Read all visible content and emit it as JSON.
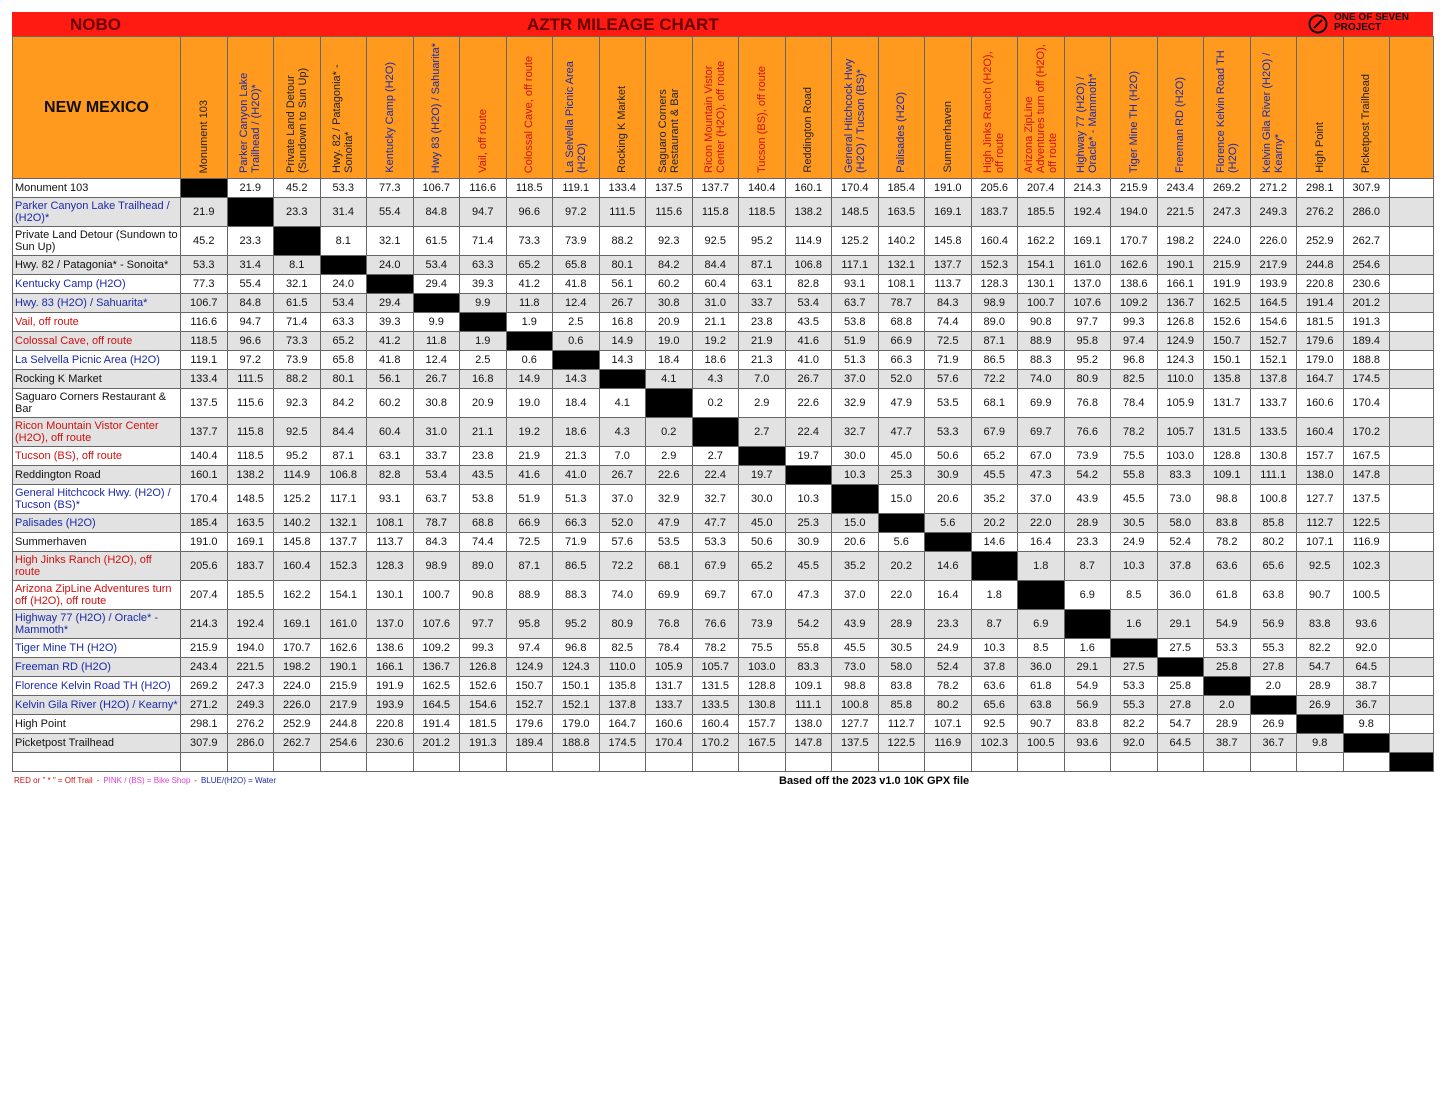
{
  "header": {
    "left": "NOBO",
    "title": "AZTR MILEAGE CHART",
    "logo": [
      "ONE OF SEVEN",
      "PROJECT"
    ]
  },
  "table": {
    "corner": "NEW MEXICO",
    "columns": [
      "Monument 103",
      "Parker Canyon Lake Trailhead / (H2O)*",
      "Private Land Detour (Sundown to Sun Up)",
      "Hwy. 82 / Patagonia* - Sonoita*",
      "Kentucky Camp (H2O)",
      "Hwy 83 (H2O) / Sahuarita*",
      "Vail, off route",
      "Colossal Cave, off route",
      "La Selvella Picnic Area (H2O)",
      "Rocking K Market",
      "Saguaro Corners Restaurant & Bar",
      "Ricon Mountain Vistor Center (H2O), off route",
      "Tucson (BS), off route",
      "Reddington Road",
      "General Hitchcock Hwy (H2O) / Tucson (BS)*",
      "Palisades (H2O)",
      "Summerhaven",
      "High Jinks Ranch (H2O), off route",
      "Arizona ZipLine Adventures turn off (H2O), off route",
      "Highway 77 (H2O) / Oracle* - Mammoth*",
      "Tiger Mine TH (H2O)",
      "Freeman RD (H2O)",
      "Florence Kelvin Road TH (H2O)",
      "Kelvin Gila River (H2O) / Kearny*",
      "High Point",
      "Picketpost Trailhead"
    ],
    "rows": [
      {
        "label": "Monument 103",
        "cells": [
          null,
          "21.9",
          "45.2",
          "53.3",
          "77.3",
          "106.7",
          "116.6",
          "118.5",
          "119.1",
          "133.4",
          "137.5",
          "137.7",
          "140.4",
          "160.1",
          "170.4",
          "185.4",
          "191.0",
          "205.6",
          "207.4",
          "214.3",
          "215.9",
          "243.4",
          "269.2",
          "271.2",
          "298.1",
          "307.9"
        ]
      },
      {
        "label": "Parker Canyon Lake Trailhead / (H2O)*",
        "cells": [
          "21.9",
          null,
          "23.3",
          "31.4",
          "55.4",
          "84.8",
          "94.7",
          "96.6",
          "97.2",
          "111.5",
          "115.6",
          "115.8",
          "118.5",
          "138.2",
          "148.5",
          "163.5",
          "169.1",
          "183.7",
          "185.5",
          "192.4",
          "194.0",
          "221.5",
          "247.3",
          "249.3",
          "276.2",
          "286.0"
        ]
      },
      {
        "label": "Private Land Detour (Sundown to Sun Up)",
        "cells": [
          "45.2",
          "23.3",
          null,
          "8.1",
          "32.1",
          "61.5",
          "71.4",
          "73.3",
          "73.9",
          "88.2",
          "92.3",
          "92.5",
          "95.2",
          "114.9",
          "125.2",
          "140.2",
          "145.8",
          "160.4",
          "162.2",
          "169.1",
          "170.7",
          "198.2",
          "224.0",
          "226.0",
          "252.9",
          "262.7"
        ]
      },
      {
        "label": "Hwy. 82 / Patagonia* - Sonoita*",
        "cells": [
          "53.3",
          "31.4",
          "8.1",
          null,
          "24.0",
          "53.4",
          "63.3",
          "65.2",
          "65.8",
          "80.1",
          "84.2",
          "84.4",
          "87.1",
          "106.8",
          "117.1",
          "132.1",
          "137.7",
          "152.3",
          "154.1",
          "161.0",
          "162.6",
          "190.1",
          "215.9",
          "217.9",
          "244.8",
          "254.6"
        ]
      },
      {
        "label": "Kentucky Camp (H2O)",
        "cells": [
          "77.3",
          "55.4",
          "32.1",
          "24.0",
          null,
          "29.4",
          "39.3",
          "41.2",
          "41.8",
          "56.1",
          "60.2",
          "60.4",
          "63.1",
          "82.8",
          "93.1",
          "108.1",
          "113.7",
          "128.3",
          "130.1",
          "137.0",
          "138.6",
          "166.1",
          "191.9",
          "193.9",
          "220.8",
          "230.6"
        ]
      },
      {
        "label": "Hwy. 83 (H2O) / Sahuarita*",
        "cells": [
          "106.7",
          "84.8",
          "61.5",
          "53.4",
          "29.4",
          null,
          "9.9",
          "11.8",
          "12.4",
          "26.7",
          "30.8",
          "31.0",
          "33.7",
          "53.4",
          "63.7",
          "78.7",
          "84.3",
          "98.9",
          "100.7",
          "107.6",
          "109.2",
          "136.7",
          "162.5",
          "164.5",
          "191.4",
          "201.2"
        ]
      },
      {
        "label": "Vail, off route",
        "cells": [
          "116.6",
          "94.7",
          "71.4",
          "63.3",
          "39.3",
          "9.9",
          null,
          "1.9",
          "2.5",
          "16.8",
          "20.9",
          "21.1",
          "23.8",
          "43.5",
          "53.8",
          "68.8",
          "74.4",
          "89.0",
          "90.8",
          "97.7",
          "99.3",
          "126.8",
          "152.6",
          "154.6",
          "181.5",
          "191.3"
        ]
      },
      {
        "label": "Colossal Cave, off route",
        "cells": [
          "118.5",
          "96.6",
          "73.3",
          "65.2",
          "41.2",
          "11.8",
          "1.9",
          null,
          "0.6",
          "14.9",
          "19.0",
          "19.2",
          "21.9",
          "41.6",
          "51.9",
          "66.9",
          "72.5",
          "87.1",
          "88.9",
          "95.8",
          "97.4",
          "124.9",
          "150.7",
          "152.7",
          "179.6",
          "189.4"
        ]
      },
      {
        "label": "La Selvella Picnic Area (H2O)",
        "cells": [
          "119.1",
          "97.2",
          "73.9",
          "65.8",
          "41.8",
          "12.4",
          "2.5",
          "0.6",
          null,
          "14.3",
          "18.4",
          "18.6",
          "21.3",
          "41.0",
          "51.3",
          "66.3",
          "71.9",
          "86.5",
          "88.3",
          "95.2",
          "96.8",
          "124.3",
          "150.1",
          "152.1",
          "179.0",
          "188.8"
        ]
      },
      {
        "label": "Rocking K Market",
        "cells": [
          "133.4",
          "111.5",
          "88.2",
          "80.1",
          "56.1",
          "26.7",
          "16.8",
          "14.9",
          "14.3",
          null,
          "4.1",
          "4.3",
          "7.0",
          "26.7",
          "37.0",
          "52.0",
          "57.6",
          "72.2",
          "74.0",
          "80.9",
          "82.5",
          "110.0",
          "135.8",
          "137.8",
          "164.7",
          "174.5"
        ]
      },
      {
        "label": "Saguaro Corners Restaurant & Bar",
        "cells": [
          "137.5",
          "115.6",
          "92.3",
          "84.2",
          "60.2",
          "30.8",
          "20.9",
          "19.0",
          "18.4",
          "4.1",
          null,
          "0.2",
          "2.9",
          "22.6",
          "32.9",
          "47.9",
          "53.5",
          "68.1",
          "69.9",
          "76.8",
          "78.4",
          "105.9",
          "131.7",
          "133.7",
          "160.6",
          "170.4"
        ]
      },
      {
        "label": "Ricon Mountain Vistor Center (H2O), off route",
        "cells": [
          "137.7",
          "115.8",
          "92.5",
          "84.4",
          "60.4",
          "31.0",
          "21.1",
          "19.2",
          "18.6",
          "4.3",
          "0.2",
          null,
          "2.7",
          "22.4",
          "32.7",
          "47.7",
          "53.3",
          "67.9",
          "69.7",
          "76.6",
          "78.2",
          "105.7",
          "131.5",
          "133.5",
          "160.4",
          "170.2"
        ]
      },
      {
        "label": "Tucson (BS), off route",
        "cells": [
          "140.4",
          "118.5",
          "95.2",
          "87.1",
          "63.1",
          "33.7",
          "23.8",
          "21.9",
          "21.3",
          "7.0",
          "2.9",
          "2.7",
          null,
          "19.7",
          "30.0",
          "45.0",
          "50.6",
          "65.2",
          "67.0",
          "73.9",
          "75.5",
          "103.0",
          "128.8",
          "130.8",
          "157.7",
          "167.5"
        ]
      },
      {
        "label": "Reddington Road",
        "cells": [
          "160.1",
          "138.2",
          "114.9",
          "106.8",
          "82.8",
          "53.4",
          "43.5",
          "41.6",
          "41.0",
          "26.7",
          "22.6",
          "22.4",
          "19.7",
          null,
          "10.3",
          "25.3",
          "30.9",
          "45.5",
          "47.3",
          "54.2",
          "55.8",
          "83.3",
          "109.1",
          "111.1",
          "138.0",
          "147.8"
        ]
      },
      {
        "label": "General Hitchcock Hwy. (H2O) / Tucson (BS)*",
        "cells": [
          "170.4",
          "148.5",
          "125.2",
          "117.1",
          "93.1",
          "63.7",
          "53.8",
          "51.9",
          "51.3",
          "37.0",
          "32.9",
          "32.7",
          "30.0",
          "10.3",
          null,
          "15.0",
          "20.6",
          "35.2",
          "37.0",
          "43.9",
          "45.5",
          "73.0",
          "98.8",
          "100.8",
          "127.7",
          "137.5"
        ]
      },
      {
        "label": "Palisades (H2O)",
        "cells": [
          "185.4",
          "163.5",
          "140.2",
          "132.1",
          "108.1",
          "78.7",
          "68.8",
          "66.9",
          "66.3",
          "52.0",
          "47.9",
          "47.7",
          "45.0",
          "25.3",
          "15.0",
          null,
          "5.6",
          "20.2",
          "22.0",
          "28.9",
          "30.5",
          "58.0",
          "83.8",
          "85.8",
          "112.7",
          "122.5"
        ]
      },
      {
        "label": "Summerhaven",
        "cells": [
          "191.0",
          "169.1",
          "145.8",
          "137.7",
          "113.7",
          "84.3",
          "74.4",
          "72.5",
          "71.9",
          "57.6",
          "53.5",
          "53.3",
          "50.6",
          "30.9",
          "20.6",
          "5.6",
          null,
          "14.6",
          "16.4",
          "23.3",
          "24.9",
          "52.4",
          "78.2",
          "80.2",
          "107.1",
          "116.9"
        ]
      },
      {
        "label": "High Jinks Ranch (H2O), off route",
        "cells": [
          "205.6",
          "183.7",
          "160.4",
          "152.3",
          "128.3",
          "98.9",
          "89.0",
          "87.1",
          "86.5",
          "72.2",
          "68.1",
          "67.9",
          "65.2",
          "45.5",
          "35.2",
          "20.2",
          "14.6",
          null,
          "1.8",
          "8.7",
          "10.3",
          "37.8",
          "63.6",
          "65.6",
          "92.5",
          "102.3"
        ]
      },
      {
        "label": "Arizona ZipLine Adventures turn off (H2O), off route",
        "cells": [
          "207.4",
          "185.5",
          "162.2",
          "154.1",
          "130.1",
          "100.7",
          "90.8",
          "88.9",
          "88.3",
          "74.0",
          "69.9",
          "69.7",
          "67.0",
          "47.3",
          "37.0",
          "22.0",
          "16.4",
          "1.8",
          null,
          "6.9",
          "8.5",
          "36.0",
          "61.8",
          "63.8",
          "90.7",
          "100.5"
        ]
      },
      {
        "label": "Highway 77 (H2O) / Oracle* - Mammoth*",
        "cells": [
          "214.3",
          "192.4",
          "169.1",
          "161.0",
          "137.0",
          "107.6",
          "97.7",
          "95.8",
          "95.2",
          "80.9",
          "76.8",
          "76.6",
          "73.9",
          "54.2",
          "43.9",
          "28.9",
          "23.3",
          "8.7",
          "6.9",
          null,
          "1.6",
          "29.1",
          "54.9",
          "56.9",
          "83.8",
          "93.6"
        ]
      },
      {
        "label": "Tiger Mine TH (H2O)",
        "cells": [
          "215.9",
          "194.0",
          "170.7",
          "162.6",
          "138.6",
          "109.2",
          "99.3",
          "97.4",
          "96.8",
          "82.5",
          "78.4",
          "78.2",
          "75.5",
          "55.8",
          "45.5",
          "30.5",
          "24.9",
          "10.3",
          "8.5",
          "1.6",
          null,
          "27.5",
          "53.3",
          "55.3",
          "82.2",
          "92.0"
        ]
      },
      {
        "label": "Freeman RD (H2O)",
        "cells": [
          "243.4",
          "221.5",
          "198.2",
          "190.1",
          "166.1",
          "136.7",
          "126.8",
          "124.9",
          "124.3",
          "110.0",
          "105.9",
          "105.7",
          "103.0",
          "83.3",
          "73.0",
          "58.0",
          "52.4",
          "37.8",
          "36.0",
          "29.1",
          "27.5",
          null,
          "25.8",
          "27.8",
          "54.7",
          "64.5"
        ]
      },
      {
        "label": "Florence Kelvin Road TH (H2O)",
        "cells": [
          "269.2",
          "247.3",
          "224.0",
          "215.9",
          "191.9",
          "162.5",
          "152.6",
          "150.7",
          "150.1",
          "135.8",
          "131.7",
          "131.5",
          "128.8",
          "109.1",
          "98.8",
          "83.8",
          "78.2",
          "63.6",
          "61.8",
          "54.9",
          "53.3",
          "25.8",
          null,
          "2.0",
          "28.9",
          "38.7"
        ]
      },
      {
        "label": "Kelvin Gila River (H2O) / Kearny*",
        "cells": [
          "271.2",
          "249.3",
          "226.0",
          "217.9",
          "193.9",
          "164.5",
          "154.6",
          "152.7",
          "152.1",
          "137.8",
          "133.7",
          "133.5",
          "130.8",
          "111.1",
          "100.8",
          "85.8",
          "80.2",
          "65.6",
          "63.8",
          "56.9",
          "55.3",
          "27.8",
          "2.0",
          null,
          "26.9",
          "36.7"
        ]
      },
      {
        "label": "High Point",
        "cells": [
          "298.1",
          "276.2",
          "252.9",
          "244.8",
          "220.8",
          "191.4",
          "181.5",
          "179.6",
          "179.0",
          "164.7",
          "160.6",
          "160.4",
          "157.7",
          "138.0",
          "127.7",
          "112.7",
          "107.1",
          "92.5",
          "90.7",
          "83.8",
          "82.2",
          "54.7",
          "28.9",
          "26.9",
          null,
          "9.8"
        ]
      },
      {
        "label": "Picketpost Trailhead",
        "cells": [
          "307.9",
          "286.0",
          "262.7",
          "254.6",
          "230.6",
          "201.2",
          "191.3",
          "189.4",
          "188.8",
          "174.5",
          "170.4",
          "170.2",
          "167.5",
          "147.8",
          "137.5",
          "122.5",
          "116.9",
          "102.3",
          "100.5",
          "93.6",
          "92.0",
          "64.5",
          "38.7",
          "36.7",
          "9.8",
          null
        ]
      }
    ]
  },
  "footer": {
    "legend": [
      "RED or \" * \" = Off Trail",
      "-",
      "PINK / (BS) = Bike Shop",
      "-",
      "BLUE/(H2O) = Water"
    ],
    "source": "Based off the 2023 v1.0 10K GPX file"
  }
}
